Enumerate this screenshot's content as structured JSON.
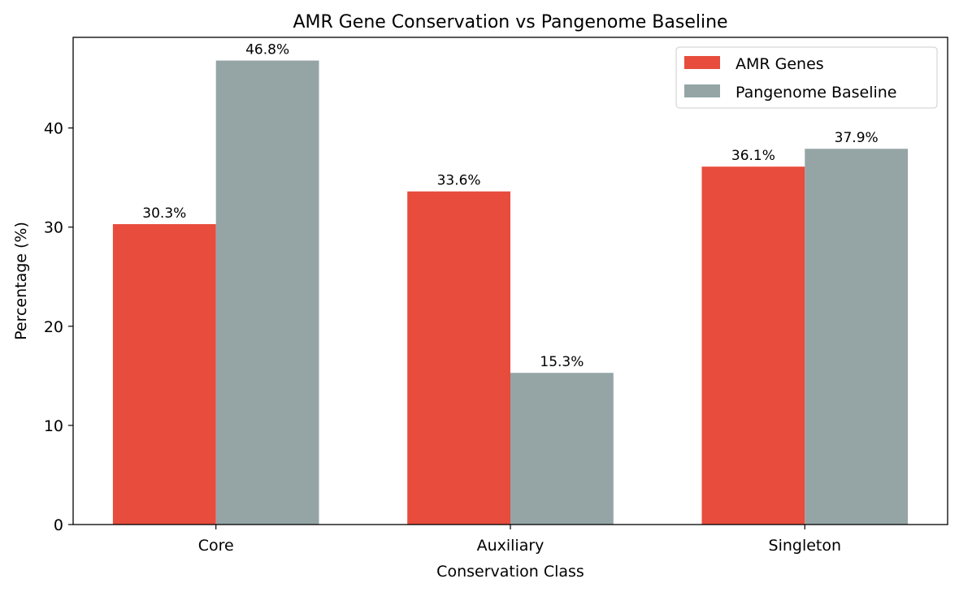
{
  "chart_data": {
    "type": "bar",
    "title": "AMR Gene Conservation vs Pangenome Baseline",
    "xlabel": "Conservation Class",
    "ylabel": "Percentage (%)",
    "categories": [
      "Core",
      "Auxiliary",
      "Singleton"
    ],
    "series": [
      {
        "name": "AMR Genes",
        "values": [
          30.3,
          33.6,
          36.1
        ],
        "labels": [
          "30.3%",
          "33.6%",
          "36.1%"
        ],
        "color": "#e74c3c"
      },
      {
        "name": "Pangenome Baseline",
        "values": [
          46.8,
          15.3,
          37.9
        ],
        "labels": [
          "46.8%",
          "15.3%",
          "37.9%"
        ],
        "color": "#95a5a6"
      }
    ],
    "ylim": [
      0,
      49.14
    ],
    "yticks": [
      0,
      10,
      20,
      30,
      40
    ],
    "ytick_labels": [
      "0",
      "10",
      "20",
      "30",
      "40"
    ],
    "grid": false,
    "legend": "top-right"
  }
}
